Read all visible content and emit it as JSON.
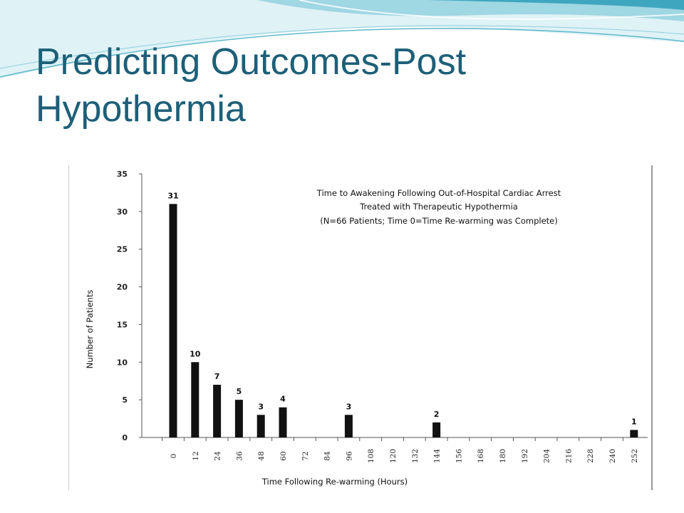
{
  "slide": {
    "title_line1": "Predicting Outcomes-Post",
    "title_line2": "Hypothermia"
  },
  "theme": {
    "title_color": "#1d5f78",
    "wave_light": "#c4e8ef",
    "wave_mid": "#5fb9cc",
    "wave_dark": "#1a8aa3",
    "bar_color": "#111111"
  },
  "chart_data": {
    "type": "bar",
    "title_lines": [
      "Time to Awakening Following Out-of-Hospital Cardiac Arrest",
      "Treated with Therapeutic Hypothermia",
      "(N=66 Patients; Time 0=Time Re-warming was Complete)"
    ],
    "xlabel": "Time Following Re-warming (Hours)",
    "ylabel": "Number of Patients",
    "ylim": [
      0,
      35
    ],
    "yticks": [
      0,
      5,
      10,
      15,
      20,
      25,
      30,
      35
    ],
    "categories": [
      "0",
      "12",
      "24",
      "36",
      "48",
      "60",
      "72",
      "84",
      "96",
      "108",
      "120",
      "132",
      "144",
      "156",
      "168",
      "180",
      "192",
      "204",
      "216",
      "228",
      "240",
      "252"
    ],
    "values": [
      31,
      10,
      7,
      5,
      3,
      4,
      0,
      0,
      3,
      0,
      0,
      0,
      2,
      0,
      0,
      0,
      0,
      0,
      0,
      0,
      0,
      1
    ],
    "data_labels": [
      "31",
      "10",
      "7",
      "5",
      "3",
      "4",
      "",
      "",
      "3",
      "",
      "",
      "",
      "2",
      "",
      "",
      "",
      "",
      "",
      "",
      "",
      "",
      "1"
    ],
    "grid": false,
    "legend": "none"
  }
}
